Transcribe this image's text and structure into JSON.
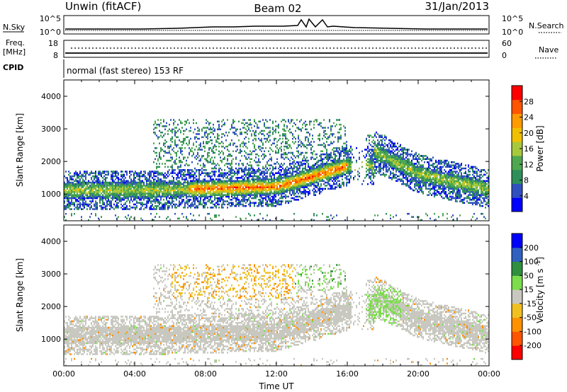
{
  "header": {
    "station": "Unwin (fitACF)",
    "beam": "Beam 02",
    "date": "31/Jan/2013"
  },
  "strips": {
    "nsky_label": "N.Sky",
    "nsky_ticks": [
      "10^5",
      "10^0"
    ],
    "nsky_right_ticks": [
      "10^5",
      "10^0"
    ],
    "nsearch_label": "N.Search",
    "freq_label_line1": "Freq.",
    "freq_label_line2": "[MHz]",
    "freq_ticks": [
      "18",
      "8"
    ],
    "nave_ticks": [
      "60",
      "0"
    ],
    "nave_label": "Nave",
    "cpid_label": "CPID",
    "cpid_text": "normal (fast stereo) 153 RF"
  },
  "colors": {
    "power_scale": [
      "#0000ff",
      "#3050c0",
      "#2f8f5a",
      "#4fa84f",
      "#a8c83c",
      "#f0c000",
      "#ff9a00",
      "#ff5500",
      "#ff0000"
    ],
    "velocity_scale": [
      "#ff0000",
      "#ff5500",
      "#ff9000",
      "#f0c020",
      "#c8c8c0",
      "#7cdc4c",
      "#2f8f3f",
      "#3060c0",
      "#0000ff"
    ]
  },
  "chart_data": [
    {
      "type": "heatmap",
      "panel": "power",
      "ylabel": "Slant Range [km]",
      "yticks": [
        1000,
        2000,
        3000,
        4000
      ],
      "ylim": [
        180,
        4500
      ],
      "xlim": [
        "00:00",
        "24:00"
      ],
      "colorbar_label": "Power [dB]",
      "colorbar_ticks": [
        28,
        24,
        20,
        16,
        12,
        8,
        4
      ],
      "colorbar_range": [
        0,
        32
      ]
    },
    {
      "type": "heatmap",
      "panel": "velocity",
      "ylabel": "Slant Range [km]",
      "yticks": [
        1000,
        2000,
        3000,
        4000
      ],
      "ylim": [
        180,
        4500
      ],
      "xlabel": "Time UT",
      "xticks": [
        "00:00",
        "04:00",
        "08:00",
        "12:00",
        "16:00",
        "20:00",
        "00:00"
      ],
      "colorbar_label": "Velocity [m s^-1]",
      "colorbar_ticks": [
        "200",
        "100",
        "50",
        "15",
        "-15",
        "-50",
        "-100",
        "-200"
      ]
    }
  ]
}
